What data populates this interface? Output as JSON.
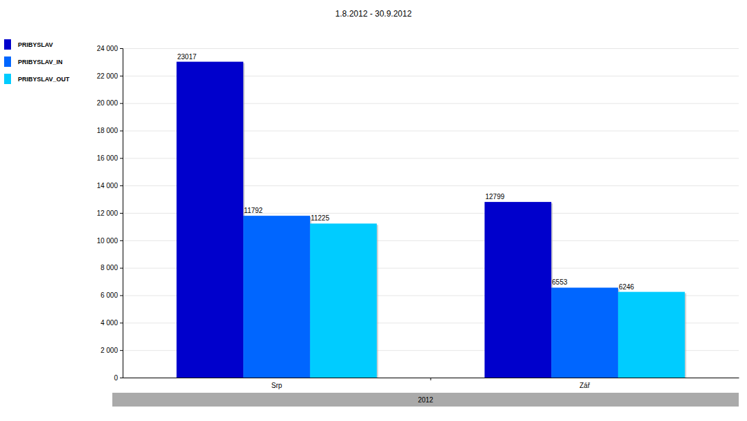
{
  "chart_data": {
    "type": "bar",
    "title": "1.8.2012 - 30.9.2012",
    "xlabel": "2012",
    "categories": [
      "Srp",
      "Zář"
    ],
    "series": [
      {
        "name": "PRIBYSLAV",
        "color": "#0000cc",
        "values": [
          23017,
          12799
        ]
      },
      {
        "name": "PRIBYSLAV_IN",
        "color": "#0066ff",
        "values": [
          11792,
          6553
        ]
      },
      {
        "name": "PRIBYSLAV_OUT",
        "color": "#00ccff",
        "values": [
          11225,
          6246
        ]
      }
    ],
    "ylim": [
      0,
      24000
    ],
    "yticks": [
      0,
      {
        "value": 2000,
        "label": "2 000"
      },
      {
        "value": 4000,
        "label": "4 000"
      },
      {
        "value": 6000,
        "label": "6 000"
      },
      {
        "value": 8000,
        "label": "8 000"
      },
      {
        "value": 10000,
        "label": "10 000"
      },
      {
        "value": 12000,
        "label": "12 000"
      },
      {
        "value": 14000,
        "label": "14 000"
      },
      {
        "value": 16000,
        "label": "16 000"
      },
      {
        "value": 18000,
        "label": "18 000"
      },
      {
        "value": 20000,
        "label": "20 000"
      },
      {
        "value": 22000,
        "label": "22 000"
      },
      {
        "value": 24000,
        "label": "24 000"
      }
    ],
    "grid": true,
    "legend": "top-left",
    "data_labels": true
  }
}
